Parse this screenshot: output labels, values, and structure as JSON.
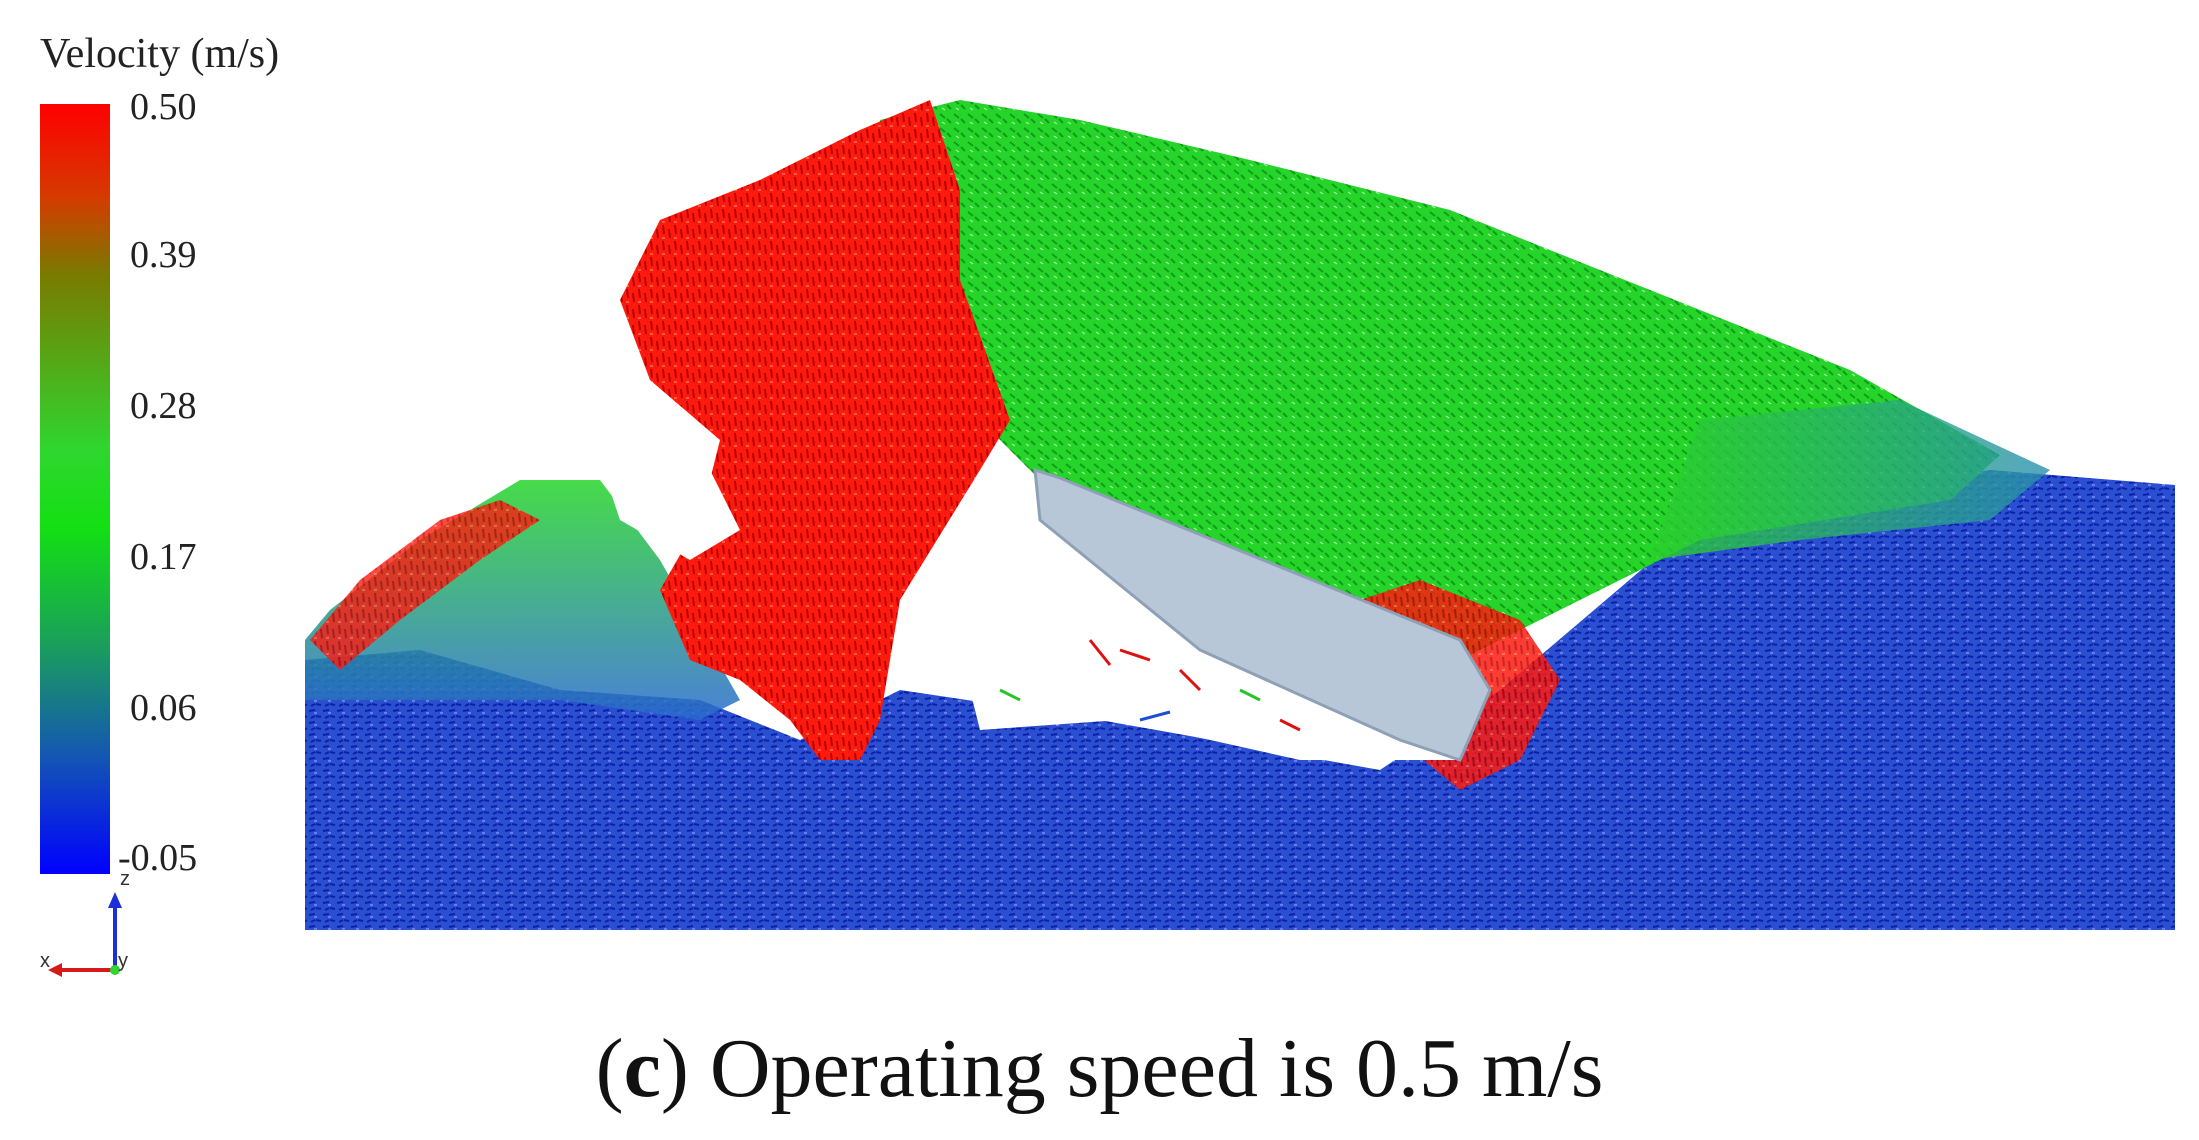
{
  "legend": {
    "title": "Velocity (m/s)",
    "ticks": [
      "0.50",
      "0.39",
      "0.28",
      "0.17",
      "0.06",
      "-0.05"
    ],
    "colors": [
      "#ff0000",
      "#7a7a00",
      "#22dd22",
      "#1aa05a",
      "#1455b4",
      "#0000ff"
    ]
  },
  "axes_triad": {
    "z": "z",
    "x": "x",
    "y": "y"
  },
  "caption": {
    "letter": "c",
    "text": "Operating speed is 0.5 m/s"
  }
}
